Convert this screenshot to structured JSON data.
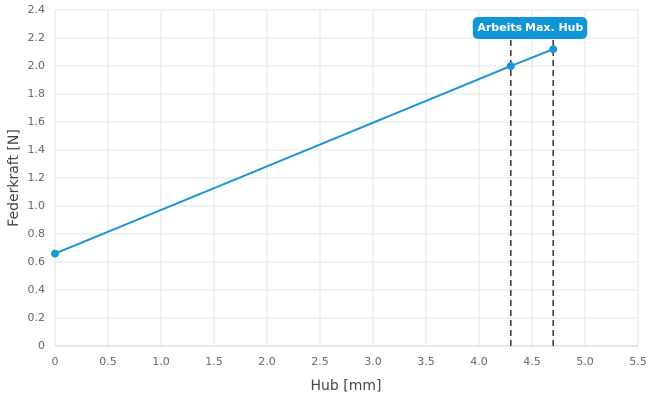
{
  "chart_data": {
    "type": "line",
    "x_label": "Hub [mm]",
    "y_label": "Federkraft [N]",
    "x": [
      0,
      4.3,
      4.7
    ],
    "series": [
      {
        "color": "#1a96d4",
        "values": [
          0.66,
          2.0,
          2.12
        ]
      }
    ],
    "xlim": [
      0,
      5.5
    ],
    "xticks": [
      0,
      0.5,
      {
        "value": 1,
        "label": "1.0"
      },
      1.5,
      {
        "value": 2,
        "label": "2.0"
      },
      2.5,
      {
        "value": 3,
        "label": "3.0"
      },
      3.5,
      {
        "value": 4,
        "label": "4.0"
      },
      4.5,
      {
        "value": 5,
        "label": "5.0"
      },
      5.5
    ],
    "ylim": [
      0,
      2.4
    ],
    "yticks": [
      0,
      0.2,
      0.4,
      0.6,
      0.8,
      {
        "value": 1,
        "label": "1.0"
      },
      1.2,
      1.4,
      1.6,
      1.8,
      {
        "value": 2,
        "label": "2.0"
      },
      2.2,
      2.4
    ],
    "grid": true,
    "annotations": [
      {
        "x": 4.3,
        "label": "Arbeits"
      },
      {
        "x": 4.7,
        "label": "Max. Hub"
      }
    ],
    "annotation_color": "#0f95d8"
  }
}
